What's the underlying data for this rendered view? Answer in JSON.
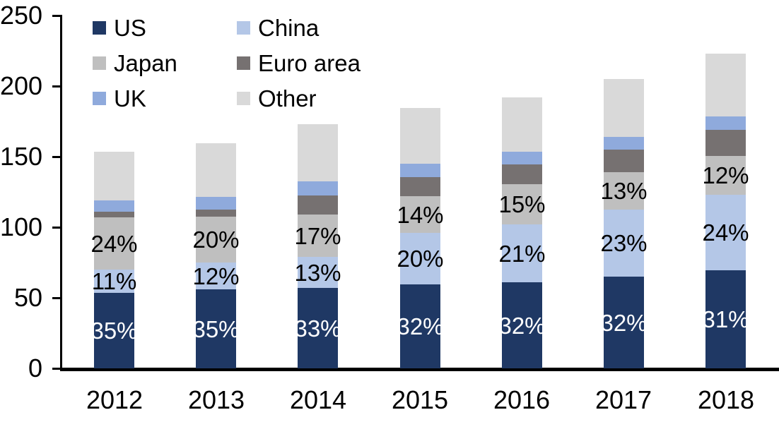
{
  "chart_data": {
    "type": "bar",
    "stacked": true,
    "title": "",
    "categories": [
      "2012",
      "2013",
      "2014",
      "2015",
      "2016",
      "2017",
      "2018"
    ],
    "series": [
      {
        "name": "US",
        "color": "#1F3864",
        "values": [
          53.5,
          56,
          57,
          59.5,
          61,
          65,
          69.5
        ],
        "data_labels": [
          "35%",
          "35%",
          "33%",
          "32%",
          "32%",
          "32%",
          "31%"
        ],
        "label_color": "#FFFFFF"
      },
      {
        "name": "China",
        "color": "#B4C7E7",
        "values": [
          16.5,
          19,
          22,
          36.5,
          41,
          47.5,
          53.5
        ],
        "data_labels": [
          "11%",
          "12%",
          "13%",
          "20%",
          "21%",
          "23%",
          "24%"
        ],
        "label_color": "#000000"
      },
      {
        "name": "Japan",
        "color": "#BFBFBF",
        "values": [
          37,
          32.5,
          30,
          26,
          28.5,
          26.5,
          27.5
        ],
        "data_labels": [
          "24%",
          "20%",
          "17%",
          "14%",
          "15%",
          "13%",
          "12%"
        ],
        "label_color": "#000000"
      },
      {
        "name": "Euro area",
        "color": "#767171",
        "values": [
          4,
          5,
          13.5,
          13.5,
          14,
          16,
          18.5
        ],
        "data_labels": null,
        "label_color": null
      },
      {
        "name": "UK",
        "color": "#8FAADC",
        "values": [
          8,
          9,
          10,
          9.5,
          9,
          9,
          9.5
        ],
        "data_labels": null,
        "label_color": null
      },
      {
        "name": "Other",
        "color": "#D9D9D9",
        "values": [
          34.5,
          38,
          40.5,
          39.5,
          38.5,
          41,
          44.5
        ],
        "data_labels": null,
        "label_color": null
      }
    ],
    "totals": [
      153.5,
      159.5,
      173,
      184.5,
      192,
      205,
      223
    ],
    "y_axis": {
      "min": 0,
      "max": 250,
      "step": 50,
      "tick_labels": [
        "0",
        "50",
        "100",
        "150",
        "200",
        "250"
      ]
    },
    "x_axis": {
      "tick_labels": [
        "2012",
        "2013",
        "2014",
        "2015",
        "2016",
        "2017",
        "2018"
      ]
    },
    "legend": {
      "position": "top-left",
      "columns": 2,
      "entries": [
        "US",
        "China",
        "Japan",
        "Euro area",
        "UK",
        "Other"
      ]
    },
    "grid": false,
    "axis_color": "#000000",
    "background_color": "#FFFFFF"
  }
}
